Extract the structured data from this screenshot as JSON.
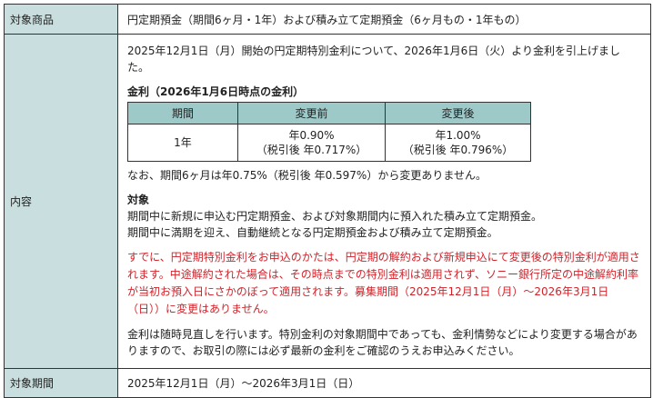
{
  "rows": {
    "product": {
      "label": "対象商品",
      "value": "円定期預金（期間6ヶ月・1年）および積み立て定期預金（6ヶ月もの・1年もの）"
    },
    "content": {
      "label": "内容",
      "intro": "2025年12月1日（月）開始の円定期特別金利について、2026年1月6日（火）より金利を引上げました。",
      "rate_heading": "金利（2026年1月6日時点の金利）",
      "rate_table": {
        "headers": [
          "期間",
          "変更前",
          "変更後"
        ],
        "row": {
          "term": "1年",
          "before_rate": "年0.90%",
          "before_net": "（税引後 年0.717%）",
          "after_rate": "年1.00%",
          "after_net": "（税引後 年0.796%）"
        }
      },
      "note_6m": "なお、期間6ヶ月は年0.75%（税引後 年0.597%）から変更ありません。",
      "target_heading": "対象",
      "target_lines": [
        "期間中に新規に申込む円定期預金、および対象期間内に預入れた積み立て定期預金。",
        "期間中に満期を迎え、自動継続となる円定期預金および積み立て定期預金。"
      ],
      "warning": "すでに、円定期特別金利をお申込のかたは、円定期の解約および新規申込にて変更後の特別金利が適用されます。中途解約された場合は、その時点までの特別金利は適用されず、ソニー銀行所定の中途解約利率が当初お預入日にさかのぼって適用されます。募集期間（2025年12月1日（月）～2026年3月1日（日））に変更はありません。",
      "disclaimer": "金利は随時見直しを行います。特別金利の対象期間中であっても、金利情勢などにより変更する場合がありますので、お取引の際には必ず最新の金利をご確認のうえお申込みください。"
    },
    "period": {
      "label": "対象期間",
      "value": "2025年12月1日（月）～2026年3月1日（日）"
    }
  },
  "colors": {
    "label_bg": "#c9dfdf",
    "table_header_bg": "#9ec9c9",
    "warning_text": "#d0232a"
  }
}
